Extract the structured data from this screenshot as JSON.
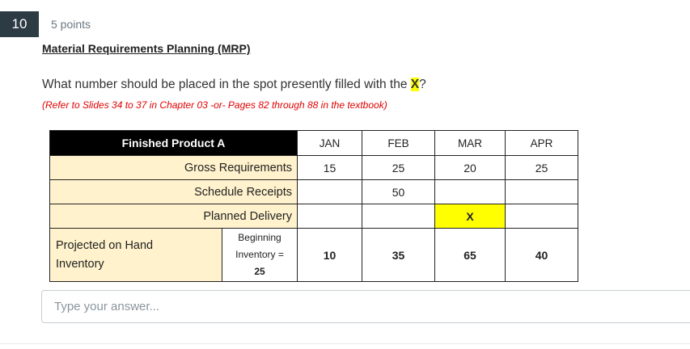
{
  "question": {
    "number": "10",
    "points": "5 points",
    "title": "Material Requirements Planning (MRP)",
    "text_before": "What number should be placed in the spot presently filled with the ",
    "highlight": "X",
    "text_after": "?",
    "note": "(Refer to Slides 34 to 37 in Chapter 03 -or- Pages 82 through 88 in the textbook)"
  },
  "mrp_table": {
    "product_label": "Finished Product A",
    "months": [
      "JAN",
      "FEB",
      "MAR",
      "APR"
    ],
    "rows": {
      "gross": {
        "label": "Gross Requirements",
        "values": [
          "15",
          "25",
          "20",
          "25"
        ]
      },
      "receipts": {
        "label": "Schedule Receipts",
        "values": [
          "",
          "50",
          "",
          ""
        ]
      },
      "planned": {
        "label": "Planned Delivery",
        "values": [
          "",
          "",
          "X",
          ""
        ]
      },
      "onhand": {
        "label_line1": "Projected on Hand",
        "label_line2": "Inventory",
        "beginning_line1": "Beginning",
        "beginning_line2": "Inventory =",
        "beginning_value": "25",
        "values": [
          "10",
          "35",
          "65",
          "40"
        ]
      }
    }
  },
  "answer": {
    "placeholder": "Type your answer..."
  },
  "colors": {
    "badge": "#2d3b45",
    "highlight": "#ffff00",
    "row_fill": "#fff2cc",
    "note": "#e00000"
  }
}
